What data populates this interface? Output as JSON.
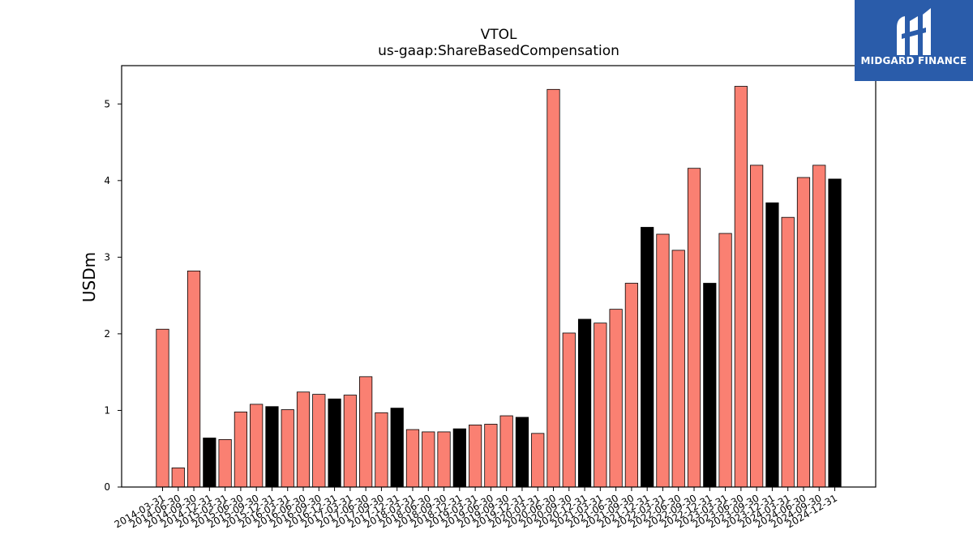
{
  "chart_data": {
    "type": "bar",
    "title": "VTOL",
    "subtitle": "us-gaap:ShareBasedCompensation",
    "xlabel": "",
    "ylabel": "USDm",
    "ylim": [
      0,
      5.5
    ],
    "yticks": [
      0,
      1,
      2,
      3,
      4,
      5
    ],
    "grid": false,
    "colors": {
      "quarter": "#fa8072",
      "fiscal_year_end": "#000000",
      "edge": "#000000"
    },
    "categories": [
      "2014-03-31",
      "2014-06-30",
      "2014-09-30",
      "2014-12-31",
      "2015-03-31",
      "2015-06-30",
      "2015-09-30",
      "2015-12-31",
      "2016-03-31",
      "2016-06-30",
      "2016-09-30",
      "2016-12-31",
      "2017-03-31",
      "2017-06-30",
      "2017-09-30",
      "2017-12-31",
      "2018-03-31",
      "2018-06-30",
      "2018-09-30",
      "2018-12-31",
      "2019-03-31",
      "2019-06-30",
      "2019-09-30",
      "2019-12-31",
      "2020-03-31",
      "2020-06-30",
      "2020-09-30",
      "2020-12-31",
      "2021-03-31",
      "2021-06-30",
      "2021-09-30",
      "2021-12-31",
      "2022-03-31",
      "2022-06-30",
      "2022-09-30",
      "2022-12-31",
      "2023-03-31",
      "2023-06-30",
      "2023-09-30",
      "2023-12-31",
      "2024-03-31",
      "2024-06-30",
      "2024-09-30",
      "2024-12-31"
    ],
    "values": [
      2.06,
      0.25,
      2.82,
      0.64,
      0.62,
      0.98,
      1.08,
      1.05,
      1.01,
      1.24,
      1.21,
      1.15,
      1.2,
      1.44,
      0.97,
      1.03,
      0.75,
      0.72,
      0.72,
      0.76,
      0.81,
      0.82,
      0.93,
      0.91,
      0.7,
      5.19,
      2.01,
      2.19,
      2.14,
      2.32,
      2.66,
      3.39,
      3.3,
      3.09,
      4.16,
      2.66,
      3.31,
      5.23,
      4.2,
      3.71,
      3.52,
      4.04,
      4.2,
      4.02
    ],
    "highlight_black": [
      false,
      false,
      false,
      true,
      false,
      false,
      false,
      true,
      false,
      false,
      false,
      true,
      false,
      false,
      false,
      true,
      false,
      false,
      false,
      true,
      false,
      false,
      false,
      true,
      false,
      false,
      false,
      true,
      false,
      false,
      false,
      true,
      false,
      false,
      false,
      true,
      false,
      false,
      false,
      true,
      false,
      false,
      false,
      true
    ]
  },
  "logo": {
    "text": "MIDGARD FINANCE"
  }
}
